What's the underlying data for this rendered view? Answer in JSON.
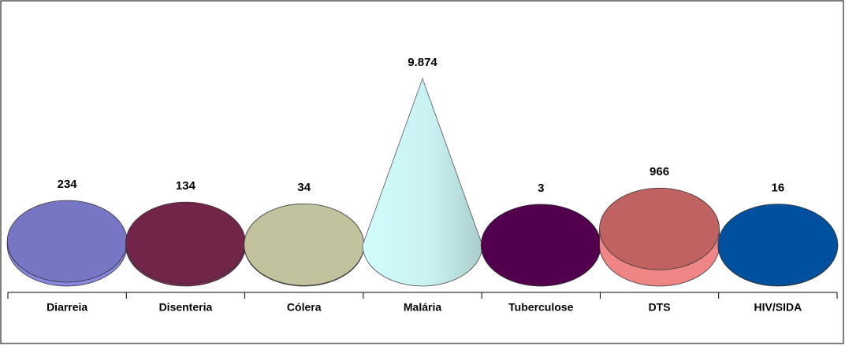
{
  "chart_data": {
    "type": "cone",
    "categories": [
      "Diarreia",
      "Disenteria",
      "Cólera",
      "Malária",
      "Tuberculose",
      "DTS",
      "HIV/SIDA"
    ],
    "values": [
      234,
      134,
      34,
      9874,
      3,
      966,
      16
    ],
    "value_labels": [
      "234",
      "134",
      "34",
      "9.874",
      "3",
      "966",
      "16"
    ],
    "colors": [
      "#7676c4",
      "#722549",
      "#c2c29e",
      "#c8f0f0",
      "#52004e",
      "#c06262",
      "#0050a0"
    ]
  }
}
